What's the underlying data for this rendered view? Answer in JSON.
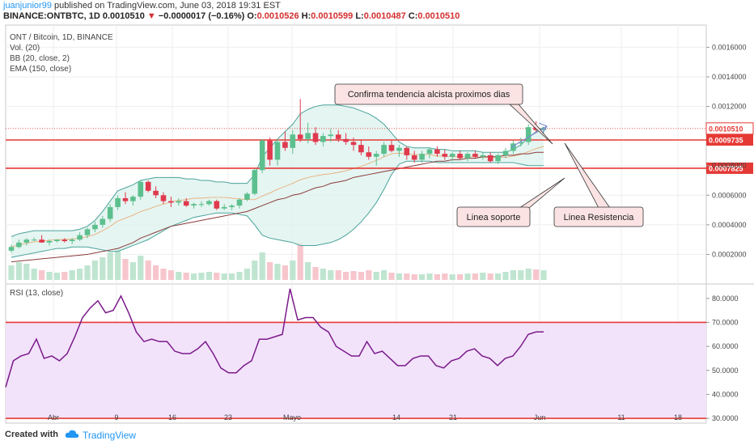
{
  "header": {
    "author": "juanjunior99",
    "published": "published on TradingView.com, June 03, 2018 19:31 EST",
    "symbol": "BINANCE:ONTBTC, 1D",
    "last": "0.0010510",
    "change_arrow": "▼",
    "change": "−0.0000017 (−0.16%)",
    "o_label": "O:",
    "o_value": "0.0010526",
    "h_label": "H:",
    "h_value": "0.0010599",
    "l_label": "L:",
    "l_value": "0.0010487",
    "c_label": "C:",
    "c_value": "0.0010510"
  },
  "legend": {
    "title": "ONT / Bitcoin, 1D, BINANCE",
    "vol": "Vol. (20)",
    "bb": "BB (20, close, 2)",
    "ema": "EMA (150, close)",
    "rsi": "RSI (13, close)"
  },
  "annotations": {
    "callout_trend": "Confirma tendencia alcista proximos dias",
    "callout_support": "Linea soporte",
    "callout_resistance": "Linea Resistencia"
  },
  "footer": {
    "created_with": "Created with",
    "brand": "TradingView"
  },
  "colors": {
    "up": "#5cbf8e",
    "down": "#e0394d",
    "bb": "#4aa39b",
    "bb_fill": "#dff2ee",
    "ema": "#8a3b3b",
    "rsi": "#7b1a8a",
    "rsi_band": "#f2e3fb",
    "level": "#e53935",
    "callout_bg": "#fbe3e3",
    "arrow": "#7b8cd6",
    "author": "#2196f3"
  },
  "chart_data": [
    {
      "type": "candlestick",
      "title": "ONT / Bitcoin, 1D, BINANCE",
      "x_ticks": [
        "Abr",
        "9",
        "16",
        "23",
        "Mayo",
        "14",
        "21",
        "Jun",
        "11",
        "18"
      ],
      "y_ticks": [
        "0.0002000",
        "0.0004000",
        "0.0006000",
        "0.0008000",
        "0.0012000",
        "0.0014000",
        "0.0016000"
      ],
      "ylim": [
        0.0,
        0.00175
      ],
      "price_labels": [
        "0.0010510",
        "0.0009735",
        "0.0007825"
      ],
      "horizontal_levels": [
        0.0009735,
        0.0007825
      ],
      "candles": [
        {
          "o": 0.000225,
          "h": 0.000265,
          "l": 0.00021,
          "c": 0.00025
        },
        {
          "o": 0.00025,
          "h": 0.0003,
          "l": 0.00024,
          "c": 0.00028
        },
        {
          "o": 0.00028,
          "h": 0.00031,
          "l": 0.00026,
          "c": 0.0003
        },
        {
          "o": 0.0003,
          "h": 0.000315,
          "l": 0.00029,
          "c": 0.0003
        },
        {
          "o": 0.0003,
          "h": 0.00033,
          "l": 0.00028,
          "c": 0.00028
        },
        {
          "o": 0.00028,
          "h": 0.0003,
          "l": 0.00026,
          "c": 0.00029
        },
        {
          "o": 0.00029,
          "h": 0.0003,
          "l": 0.00028,
          "c": 0.0003
        },
        {
          "o": 0.0003,
          "h": 0.00031,
          "l": 0.00028,
          "c": 0.00029
        },
        {
          "o": 0.00029,
          "h": 0.00031,
          "l": 0.00027,
          "c": 0.0003
        },
        {
          "o": 0.0003,
          "h": 0.00035,
          "l": 0.00029,
          "c": 0.00033
        },
        {
          "o": 0.00033,
          "h": 0.00038,
          "l": 0.00031,
          "c": 0.00037
        },
        {
          "o": 0.00037,
          "h": 0.00042,
          "l": 0.00035,
          "c": 0.0004
        },
        {
          "o": 0.0004,
          "h": 0.00046,
          "l": 0.00038,
          "c": 0.00044
        },
        {
          "o": 0.00044,
          "h": 0.00054,
          "l": 0.00042,
          "c": 0.00052
        },
        {
          "o": 0.00052,
          "h": 0.0006,
          "l": 0.0005,
          "c": 0.00058
        },
        {
          "o": 0.00058,
          "h": 0.00062,
          "l": 0.00054,
          "c": 0.00056
        },
        {
          "o": 0.00056,
          "h": 0.0006,
          "l": 0.00053,
          "c": 0.00059
        },
        {
          "o": 0.00059,
          "h": 0.0007,
          "l": 0.00057,
          "c": 0.00069
        },
        {
          "o": 0.00069,
          "h": 0.0007,
          "l": 0.00062,
          "c": 0.00063
        },
        {
          "o": 0.00063,
          "h": 0.00066,
          "l": 0.00058,
          "c": 0.0006
        },
        {
          "o": 0.0006,
          "h": 0.00062,
          "l": 0.00054,
          "c": 0.00056
        },
        {
          "o": 0.00056,
          "h": 0.00059,
          "l": 0.00052,
          "c": 0.00055
        },
        {
          "o": 0.00055,
          "h": 0.00058,
          "l": 0.00053,
          "c": 0.00056
        },
        {
          "o": 0.00056,
          "h": 0.00058,
          "l": 0.00052,
          "c": 0.00053
        },
        {
          "o": 0.00053,
          "h": 0.00055,
          "l": 0.00051,
          "c": 0.00054
        },
        {
          "o": 0.00054,
          "h": 0.00056,
          "l": 0.00052,
          "c": 0.00054
        },
        {
          "o": 0.00054,
          "h": 0.00057,
          "l": 0.00053,
          "c": 0.00056
        },
        {
          "o": 0.00056,
          "h": 0.00057,
          "l": 0.0005,
          "c": 0.00051
        },
        {
          "o": 0.00051,
          "h": 0.00054,
          "l": 0.0005,
          "c": 0.00052
        },
        {
          "o": 0.00052,
          "h": 0.00054,
          "l": 0.0005,
          "c": 0.00053
        },
        {
          "o": 0.00053,
          "h": 0.00058,
          "l": 0.00051,
          "c": 0.00057
        },
        {
          "o": 0.00057,
          "h": 0.00062,
          "l": 0.00056,
          "c": 0.00061
        },
        {
          "o": 0.00061,
          "h": 0.00078,
          "l": 0.0006,
          "c": 0.00077
        },
        {
          "o": 0.00077,
          "h": 0.00098,
          "l": 0.00075,
          "c": 0.00097
        },
        {
          "o": 0.00097,
          "h": 0.00099,
          "l": 0.0008,
          "c": 0.00084
        },
        {
          "o": 0.00084,
          "h": 0.00098,
          "l": 0.0008,
          "c": 0.00096
        },
        {
          "o": 0.00096,
          "h": 0.00103,
          "l": 0.0009,
          "c": 0.00092
        },
        {
          "o": 0.00092,
          "h": 0.00104,
          "l": 0.00088,
          "c": 0.00101
        },
        {
          "o": 0.00101,
          "h": 0.00125,
          "l": 0.00096,
          "c": 0.00098
        },
        {
          "o": 0.00098,
          "h": 0.00109,
          "l": 0.00095,
          "c": 0.00102
        },
        {
          "o": 0.00102,
          "h": 0.00106,
          "l": 0.00094,
          "c": 0.00096
        },
        {
          "o": 0.00096,
          "h": 0.00102,
          "l": 0.00093,
          "c": 0.001
        },
        {
          "o": 0.001,
          "h": 0.00105,
          "l": 0.00096,
          "c": 0.00101
        },
        {
          "o": 0.00101,
          "h": 0.00104,
          "l": 0.00096,
          "c": 0.00098
        },
        {
          "o": 0.00098,
          "h": 0.00102,
          "l": 0.00094,
          "c": 0.00096
        },
        {
          "o": 0.00096,
          "h": 0.00099,
          "l": 0.0009,
          "c": 0.00094
        },
        {
          "o": 0.00094,
          "h": 0.00097,
          "l": 0.00087,
          "c": 0.00089
        },
        {
          "o": 0.00089,
          "h": 0.00093,
          "l": 0.00084,
          "c": 0.00086
        },
        {
          "o": 0.00086,
          "h": 0.0009,
          "l": 0.0008,
          "c": 0.00088
        },
        {
          "o": 0.00088,
          "h": 0.00096,
          "l": 0.00086,
          "c": 0.00094
        },
        {
          "o": 0.00094,
          "h": 0.00097,
          "l": 0.00089,
          "c": 0.0009
        },
        {
          "o": 0.0009,
          "h": 0.00094,
          "l": 0.00086,
          "c": 0.00092
        },
        {
          "o": 0.00092,
          "h": 0.00093,
          "l": 0.00084,
          "c": 0.00087
        },
        {
          "o": 0.00087,
          "h": 0.0009,
          "l": 0.00082,
          "c": 0.00084
        },
        {
          "o": 0.00084,
          "h": 0.0009,
          "l": 0.00082,
          "c": 0.00088
        },
        {
          "o": 0.00088,
          "h": 0.00092,
          "l": 0.00085,
          "c": 0.00091
        },
        {
          "o": 0.00091,
          "h": 0.00093,
          "l": 0.00086,
          "c": 0.00088
        },
        {
          "o": 0.00088,
          "h": 0.00091,
          "l": 0.00084,
          "c": 0.00086
        },
        {
          "o": 0.00086,
          "h": 0.00089,
          "l": 0.00083,
          "c": 0.00088
        },
        {
          "o": 0.00088,
          "h": 0.0009,
          "l": 0.00084,
          "c": 0.00085
        },
        {
          "o": 0.00085,
          "h": 0.00089,
          "l": 0.00083,
          "c": 0.00088
        },
        {
          "o": 0.00088,
          "h": 0.0009,
          "l": 0.00085,
          "c": 0.00086
        },
        {
          "o": 0.00086,
          "h": 0.00089,
          "l": 0.00084,
          "c": 0.00087
        },
        {
          "o": 0.00087,
          "h": 0.00089,
          "l": 0.00082,
          "c": 0.00083
        },
        {
          "o": 0.00083,
          "h": 0.00088,
          "l": 0.00081,
          "c": 0.00087
        },
        {
          "o": 0.00087,
          "h": 0.00092,
          "l": 0.00085,
          "c": 0.0009
        },
        {
          "o": 0.0009,
          "h": 0.00097,
          "l": 0.00088,
          "c": 0.00095
        },
        {
          "o": 0.00095,
          "h": 0.00099,
          "l": 0.00093,
          "c": 0.00096
        },
        {
          "o": 0.00096,
          "h": 0.00108,
          "l": 0.00094,
          "c": 0.00106
        },
        {
          "o": 0.00106,
          "h": 0.0011,
          "l": 0.00102,
          "c": 0.00104
        },
        {
          "o": 0.00104,
          "h": 0.00106,
          "l": 0.00102,
          "c": 0.00105
        }
      ],
      "volume": [
        18,
        22,
        20,
        14,
        12,
        10,
        9,
        10,
        12,
        14,
        18,
        24,
        28,
        34,
        40,
        26,
        22,
        30,
        24,
        18,
        14,
        12,
        10,
        9,
        8,
        9,
        10,
        9,
        8,
        8,
        10,
        14,
        24,
        34,
        22,
        20,
        18,
        24,
        46,
        22,
        16,
        14,
        12,
        12,
        10,
        11,
        10,
        12,
        10,
        12,
        9,
        8,
        8,
        7,
        7,
        8,
        7,
        8,
        7,
        7,
        8,
        8,
        9,
        8,
        8,
        10,
        12,
        12,
        14,
        13,
        12
      ],
      "bb_upper": [
        0.00032,
        0.00034,
        0.00035,
        0.00036,
        0.00036,
        0.00036,
        0.00036,
        0.00036,
        0.00036,
        0.00037,
        0.00039,
        0.00043,
        0.00049,
        0.00056,
        0.00063,
        0.00065,
        0.00067,
        0.0007,
        0.00071,
        0.00072,
        0.00072,
        0.00072,
        0.00072,
        0.00071,
        0.00071,
        0.0007,
        0.0007,
        0.00069,
        0.00069,
        0.00068,
        0.00068,
        0.00068,
        0.00074,
        0.00086,
        0.00092,
        0.00098,
        0.00103,
        0.00108,
        0.00115,
        0.00118,
        0.0012,
        0.00121,
        0.00121,
        0.00121,
        0.0012,
        0.00119,
        0.00117,
        0.00115,
        0.00112,
        0.00108,
        0.00102,
        0.00096,
        0.00093,
        0.00092,
        0.00092,
        0.00092,
        0.00091,
        0.00091,
        0.0009,
        0.0009,
        0.0009,
        0.0009,
        0.00089,
        0.00089,
        0.00089,
        0.00089,
        0.00091,
        0.00094,
        0.00099,
        0.00103,
        0.00106
      ],
      "bb_lower": [
        0.00018,
        0.00019,
        0.0002,
        0.00021,
        0.00022,
        0.00023,
        0.00024,
        0.00024,
        0.00025,
        0.00025,
        0.00025,
        0.00024,
        0.00023,
        0.00022,
        0.00022,
        0.00024,
        0.00026,
        0.00028,
        0.0003,
        0.00033,
        0.00036,
        0.00039,
        0.00041,
        0.00043,
        0.00045,
        0.00046,
        0.00047,
        0.00048,
        0.00048,
        0.00048,
        0.00047,
        0.00046,
        0.0004,
        0.00033,
        0.00031,
        0.0003,
        0.00029,
        0.00028,
        0.00026,
        0.00026,
        0.00026,
        0.00027,
        0.00028,
        0.0003,
        0.00033,
        0.00037,
        0.00042,
        0.00048,
        0.00055,
        0.00064,
        0.00074,
        0.00081,
        0.00083,
        0.00083,
        0.00083,
        0.00083,
        0.00082,
        0.00082,
        0.00082,
        0.00082,
        0.00082,
        0.00082,
        0.00082,
        0.00082,
        0.00082,
        0.00082,
        0.00082,
        0.00081,
        0.0008,
        0.0008,
        0.0008
      ],
      "ema": [
        0.00015,
        0.000155,
        0.00016,
        0.000165,
        0.00017,
        0.000175,
        0.00018,
        0.000185,
        0.00019,
        0.000195,
        0.0002,
        0.00021,
        0.00022,
        0.00023,
        0.00024,
        0.00026,
        0.00028,
        0.00031,
        0.00033,
        0.00035,
        0.00037,
        0.00039,
        0.0004,
        0.00041,
        0.00042,
        0.00043,
        0.00044,
        0.00045,
        0.00046,
        0.00047,
        0.00048,
        0.00049,
        0.00051,
        0.00053,
        0.00055,
        0.00057,
        0.00058,
        0.0006,
        0.00061,
        0.00063,
        0.00065,
        0.00066,
        0.00068,
        0.00069,
        0.0007,
        0.00072,
        0.00073,
        0.00074,
        0.00075,
        0.00076,
        0.00077,
        0.00078,
        0.00079,
        0.0008,
        0.00081,
        0.00082,
        0.00083,
        0.00083,
        0.00084,
        0.00084,
        0.00085,
        0.00085,
        0.00086,
        0.00086,
        0.00086,
        0.00087,
        0.00087,
        0.00088,
        0.00088,
        0.00089,
        0.00089
      ]
    },
    {
      "type": "line",
      "title": "RSI (13, close)",
      "y_ticks": [
        "30.0000",
        "40.0000",
        "50.0000",
        "60.0000",
        "70.0000",
        "80.0000"
      ],
      "ylim": [
        28,
        86
      ],
      "levels": [
        70,
        30
      ],
      "series": [
        {
          "values": [
            43,
            54,
            56,
            57,
            63,
            55,
            56,
            54,
            57,
            64,
            72,
            76,
            79,
            74,
            75,
            81,
            74,
            66,
            62,
            63,
            62,
            62,
            58,
            57,
            57,
            59,
            62,
            57,
            51,
            49,
            49,
            52,
            54,
            63,
            63,
            64,
            65,
            84,
            71,
            72,
            72,
            68,
            66,
            60,
            58,
            56,
            56,
            62,
            57,
            58,
            55,
            52,
            52,
            55,
            56,
            56,
            52,
            51,
            54,
            55,
            58,
            59,
            56,
            55,
            52,
            55,
            56,
            60,
            65,
            66,
            66
          ]
        }
      ]
    }
  ]
}
